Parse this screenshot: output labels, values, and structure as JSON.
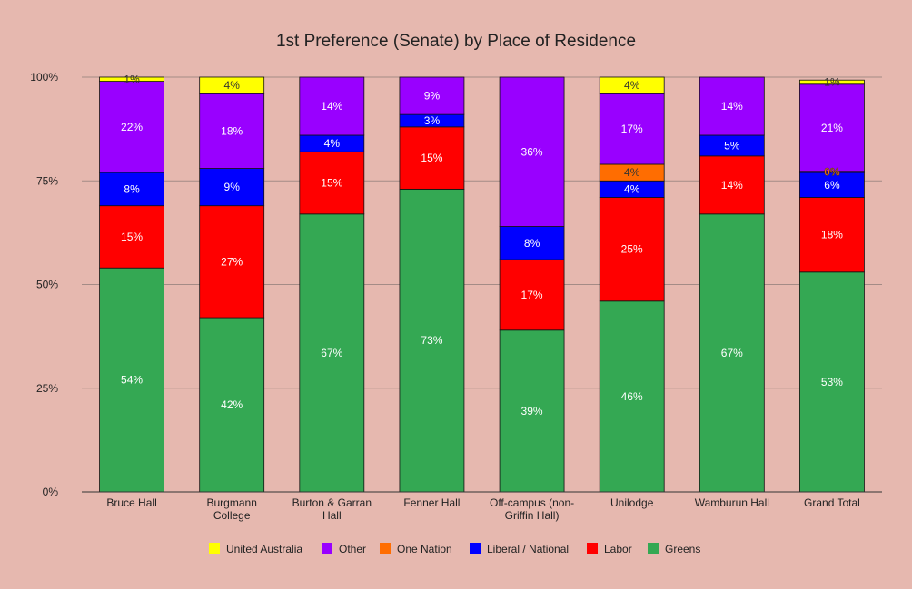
{
  "chart_data": {
    "type": "bar",
    "stacked": true,
    "title": "1st Preference (Senate) by Place of Residence",
    "xlabel": "",
    "ylabel": "",
    "ylim": [
      0,
      100
    ],
    "ytick_values": [
      0,
      25,
      50,
      75,
      100
    ],
    "ytick_labels": [
      "0%",
      "25%",
      "50%",
      "75%",
      "100%"
    ],
    "grid": true,
    "legend_position": "bottom",
    "categories": [
      [
        "Bruce Hall"
      ],
      [
        "Burgmann",
        "College"
      ],
      [
        "Burton & Garran",
        "Hall"
      ],
      [
        "Fenner Hall"
      ],
      [
        "Off-campus (non-",
        "Griffin Hall)"
      ],
      [
        "Unilodge"
      ],
      [
        "Wamburun Hall"
      ],
      [
        "Grand Total"
      ]
    ],
    "series": [
      {
        "name": "Greens",
        "color": "#34a853",
        "values": [
          54,
          42,
          67,
          73,
          39,
          46,
          67,
          53
        ],
        "labels": [
          "54%",
          "42%",
          "67%",
          "73%",
          "39%",
          "46%",
          "67%",
          "53%"
        ]
      },
      {
        "name": "Labor",
        "color": "#ff0000",
        "values": [
          15,
          27,
          15,
          15,
          17,
          25,
          14,
          18
        ],
        "labels": [
          "15%",
          "27%",
          "15%",
          "15%",
          "17%",
          "25%",
          "14%",
          "18%"
        ]
      },
      {
        "name": "Liberal / National",
        "color": "#0000ff",
        "values": [
          8,
          9,
          4,
          3,
          8,
          4,
          5,
          6
        ],
        "labels": [
          "8%",
          "9%",
          "4%",
          "3%",
          "8%",
          "4%",
          "5%",
          "6%"
        ]
      },
      {
        "name": "One Nation",
        "color": "#ff6d01",
        "values": [
          0,
          0,
          0,
          0,
          0,
          4,
          0,
          0.3
        ],
        "labels": [
          "",
          "",
          "",
          "",
          "",
          "4%",
          "",
          "0%"
        ]
      },
      {
        "name": "Other",
        "color": "#9900ff",
        "values": [
          22,
          18,
          14,
          9,
          36,
          17,
          14,
          21
        ],
        "labels": [
          "22%",
          "18%",
          "14%",
          "9%",
          "36%",
          "17%",
          "14%",
          "21%"
        ]
      },
      {
        "name": "United Australia",
        "color": "#ffff00",
        "values": [
          1,
          4,
          0,
          0,
          0,
          4,
          0,
          1
        ],
        "labels": [
          "1%",
          "4%",
          "",
          "",
          "",
          "4%",
          "",
          "1%"
        ]
      }
    ],
    "legend_order": [
      "United Australia",
      "Other",
      "One Nation",
      "Liberal / National",
      "Labor",
      "Greens"
    ]
  }
}
